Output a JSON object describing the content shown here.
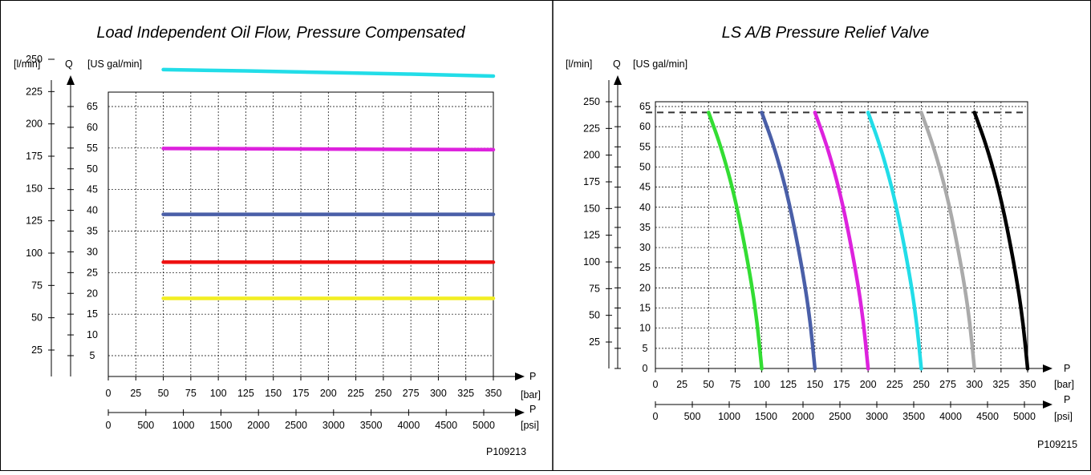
{
  "chart_data": [
    {
      "type": "line",
      "title": "Load Independent Oil Flow, Pressure Compensated",
      "y_axis": {
        "symbol": "Q",
        "unit_left": "[l/min]",
        "unit_right": "[US gal/min]",
        "ylim": [
          0,
          270
        ],
        "ticks_lmin": [
          25,
          50,
          75,
          100,
          125,
          150,
          175,
          200,
          225,
          250
        ],
        "ticks_gal": [
          5,
          10,
          15,
          20,
          25,
          30,
          35,
          40,
          45,
          50,
          55,
          60,
          65
        ]
      },
      "x_axis": {
        "symbol": "P",
        "unit_bar": "[bar]",
        "unit_psi": "[psi]",
        "xlim": [
          0,
          350
        ],
        "ticks_bar": [
          0,
          25,
          50,
          75,
          100,
          125,
          150,
          175,
          200,
          225,
          250,
          275,
          300,
          325,
          350
        ],
        "ticks_psi": [
          0,
          500,
          1000,
          1500,
          2000,
          2500,
          3000,
          3500,
          4000,
          4500,
          5000
        ]
      },
      "grid": true,
      "series": [
        {
          "color": "#22dde8",
          "points": [
            [
              50,
              242
            ],
            [
              200,
              240
            ],
            [
              350,
              237
            ]
          ]
        },
        {
          "color": "#dd22dd",
          "points": [
            [
              50,
              181
            ],
            [
              350,
              180
            ]
          ]
        },
        {
          "color": "#4a5fa8",
          "points": [
            [
              50,
              130
            ],
            [
              350,
              130
            ]
          ]
        },
        {
          "color": "#ee1111",
          "points": [
            [
              50,
              93
            ],
            [
              350,
              93
            ]
          ]
        },
        {
          "color": "#f2ee22",
          "points": [
            [
              50,
              65
            ],
            [
              350,
              65
            ]
          ]
        }
      ],
      "figure_id": "P109213"
    },
    {
      "type": "line",
      "title": "LS A/B Pressure Relief Valve",
      "y_axis": {
        "symbol": "Q",
        "unit_left": "[l/min]",
        "unit_right": "[US gal/min]",
        "ylim": [
          0,
          250
        ],
        "ticks_lmin": [
          25,
          50,
          75,
          100,
          125,
          150,
          175,
          200,
          225,
          250
        ],
        "ticks_gal": [
          0,
          5,
          10,
          15,
          20,
          25,
          30,
          35,
          40,
          45,
          50,
          55,
          60,
          65
        ]
      },
      "x_axis": {
        "symbol": "P",
        "unit_bar": "[bar]",
        "unit_psi": "[psi]",
        "xlim": [
          0,
          350
        ],
        "ticks_bar": [
          0,
          25,
          50,
          75,
          100,
          125,
          150,
          175,
          200,
          225,
          250,
          275,
          300,
          325,
          350
        ],
        "ticks_psi": [
          0,
          500,
          1000,
          1500,
          2000,
          2500,
          3000,
          3500,
          4000,
          4500,
          5000
        ]
      },
      "grid": true,
      "max_flow_line": 240,
      "series": [
        {
          "color": "#33dd33",
          "points": [
            [
              50,
              240
            ],
            [
              62,
              207
            ],
            [
              75,
              160
            ],
            [
              87,
              100
            ],
            [
              95,
              50
            ],
            [
              100,
              0
            ]
          ]
        },
        {
          "color": "#4a5fa8",
          "points": [
            [
              100,
              240
            ],
            [
              112,
              207
            ],
            [
              125,
              160
            ],
            [
              137,
              100
            ],
            [
              145,
              50
            ],
            [
              150,
              0
            ]
          ]
        },
        {
          "color": "#dd22dd",
          "points": [
            [
              150,
              240
            ],
            [
              162,
              207
            ],
            [
              175,
              160
            ],
            [
              187,
              100
            ],
            [
              195,
              50
            ],
            [
              200,
              0
            ]
          ]
        },
        {
          "color": "#22dde8",
          "points": [
            [
              200,
              240
            ],
            [
              212,
              207
            ],
            [
              225,
              160
            ],
            [
              237,
              100
            ],
            [
              245,
              50
            ],
            [
              250,
              0
            ]
          ]
        },
        {
          "color": "#aaaaaa",
          "points": [
            [
              250,
              240
            ],
            [
              262,
              207
            ],
            [
              275,
              160
            ],
            [
              287,
              100
            ],
            [
              295,
              50
            ],
            [
              300,
              0
            ]
          ]
        },
        {
          "color": "#000000",
          "points": [
            [
              300,
              240
            ],
            [
              312,
              207
            ],
            [
              325,
              160
            ],
            [
              337,
              100
            ],
            [
              345,
              50
            ],
            [
              350,
              0
            ]
          ]
        }
      ],
      "figure_id": "P109215"
    }
  ]
}
